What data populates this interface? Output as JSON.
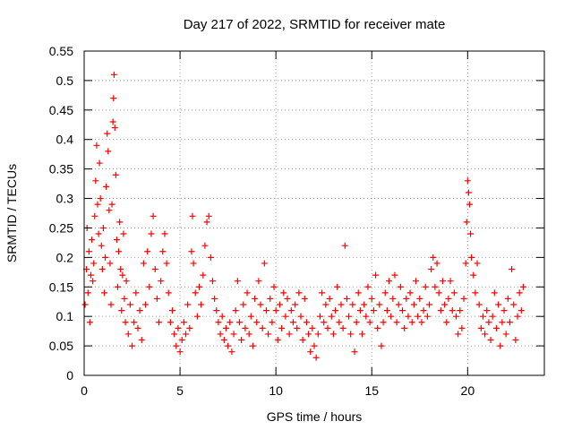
{
  "chart_data": {
    "type": "scatter",
    "title": "Day 217 of 2022, SRMTID for receiver mate",
    "xlabel": "GPS time / hours",
    "ylabel": "SRMTID / TECUs",
    "xlim": [
      0,
      24
    ],
    "ylim": [
      0,
      0.55
    ],
    "xticks": [
      0,
      5,
      10,
      15,
      20
    ],
    "yticks": [
      0,
      0.05,
      0.1,
      0.15,
      0.2,
      0.25,
      0.3,
      0.35,
      0.4,
      0.45,
      0.5,
      0.55
    ],
    "ytick_labels": [
      "0",
      "0.05",
      "0.1",
      "0.15",
      "0.2",
      "0.25",
      "0.3",
      "0.35",
      "0.4",
      "0.45",
      "0.5",
      "0.55"
    ],
    "grid": true,
    "marker": "+",
    "color": "#ff0000",
    "points": [
      [
        0.05,
        0.12
      ],
      [
        0.12,
        0.18
      ],
      [
        0.15,
        0.25
      ],
      [
        0.2,
        0.14
      ],
      [
        0.25,
        0.21
      ],
      [
        0.3,
        0.09
      ],
      [
        0.35,
        0.17
      ],
      [
        0.4,
        0.23
      ],
      [
        0.45,
        0.16
      ],
      [
        0.5,
        0.19
      ],
      [
        0.55,
        0.27
      ],
      [
        0.6,
        0.33
      ],
      [
        0.65,
        0.39
      ],
      [
        0.7,
        0.29
      ],
      [
        0.75,
        0.24
      ],
      [
        0.8,
        0.36
      ],
      [
        0.85,
        0.3
      ],
      [
        0.9,
        0.22
      ],
      [
        0.95,
        0.18
      ],
      [
        1.0,
        0.25
      ],
      [
        1.05,
        0.14
      ],
      [
        1.1,
        0.2
      ],
      [
        1.15,
        0.32
      ],
      [
        1.2,
        0.41
      ],
      [
        1.25,
        0.38
      ],
      [
        1.3,
        0.28
      ],
      [
        1.35,
        0.19
      ],
      [
        1.4,
        0.12
      ],
      [
        1.45,
        0.29
      ],
      [
        1.5,
        0.43
      ],
      [
        1.53,
        0.47
      ],
      [
        1.56,
        0.51
      ],
      [
        1.6,
        0.42
      ],
      [
        1.65,
        0.34
      ],
      [
        1.7,
        0.23
      ],
      [
        1.75,
        0.15
      ],
      [
        1.8,
        0.21
      ],
      [
        1.85,
        0.26
      ],
      [
        1.9,
        0.18
      ],
      [
        1.95,
        0.11
      ],
      [
        2.0,
        0.17
      ],
      [
        2.05,
        0.24
      ],
      [
        2.1,
        0.13
      ],
      [
        2.15,
        0.09
      ],
      [
        2.2,
        0.16
      ],
      [
        2.3,
        0.07
      ],
      [
        2.4,
        0.12
      ],
      [
        2.5,
        0.05
      ],
      [
        2.6,
        0.09
      ],
      [
        2.7,
        0.14
      ],
      [
        2.8,
        0.08
      ],
      [
        2.9,
        0.11
      ],
      [
        3.0,
        0.06
      ],
      [
        3.1,
        0.19
      ],
      [
        3.2,
        0.12
      ],
      [
        3.3,
        0.21
      ],
      [
        3.4,
        0.15
      ],
      [
        3.5,
        0.24
      ],
      [
        3.6,
        0.27
      ],
      [
        3.7,
        0.18
      ],
      [
        3.8,
        0.13
      ],
      [
        3.9,
        0.09
      ],
      [
        4.0,
        0.16
      ],
      [
        4.1,
        0.21
      ],
      [
        4.2,
        0.24
      ],
      [
        4.3,
        0.19
      ],
      [
        4.4,
        0.14
      ],
      [
        4.5,
        0.09
      ],
      [
        4.6,
        0.11
      ],
      [
        4.7,
        0.07
      ],
      [
        4.8,
        0.05
      ],
      [
        4.9,
        0.08
      ],
      [
        5.0,
        0.04
      ],
      [
        5.1,
        0.06
      ],
      [
        5.2,
        0.09
      ],
      [
        5.3,
        0.07
      ],
      [
        5.4,
        0.12
      ],
      [
        5.5,
        0.08
      ],
      [
        5.6,
        0.21
      ],
      [
        5.65,
        0.27
      ],
      [
        5.7,
        0.19
      ],
      [
        5.8,
        0.14
      ],
      [
        5.9,
        0.1
      ],
      [
        6.0,
        0.15
      ],
      [
        6.1,
        0.12
      ],
      [
        6.2,
        0.17
      ],
      [
        6.3,
        0.22
      ],
      [
        6.4,
        0.26
      ],
      [
        6.5,
        0.27
      ],
      [
        6.6,
        0.2
      ],
      [
        6.7,
        0.16
      ],
      [
        6.8,
        0.13
      ],
      [
        6.9,
        0.11
      ],
      [
        7.0,
        0.09
      ],
      [
        7.1,
        0.07
      ],
      [
        7.2,
        0.1
      ],
      [
        7.3,
        0.06
      ],
      [
        7.4,
        0.08
      ],
      [
        7.5,
        0.05
      ],
      [
        7.6,
        0.09
      ],
      [
        7.7,
        0.04
      ],
      [
        7.8,
        0.07
      ],
      [
        7.9,
        0.11
      ],
      [
        8.0,
        0.16
      ],
      [
        8.1,
        0.09
      ],
      [
        8.2,
        0.06
      ],
      [
        8.3,
        0.12
      ],
      [
        8.4,
        0.08
      ],
      [
        8.5,
        0.14
      ],
      [
        8.6,
        0.07
      ],
      [
        8.7,
        0.1
      ],
      [
        8.8,
        0.05
      ],
      [
        8.9,
        0.13
      ],
      [
        9.0,
        0.09
      ],
      [
        9.1,
        0.16
      ],
      [
        9.2,
        0.12
      ],
      [
        9.3,
        0.08
      ],
      [
        9.4,
        0.19
      ],
      [
        9.5,
        0.11
      ],
      [
        9.6,
        0.07
      ],
      [
        9.7,
        0.13
      ],
      [
        9.8,
        0.09
      ],
      [
        9.9,
        0.15
      ],
      [
        10.0,
        0.11
      ],
      [
        10.1,
        0.06
      ],
      [
        10.2,
        0.12
      ],
      [
        10.3,
        0.08
      ],
      [
        10.4,
        0.14
      ],
      [
        10.5,
        0.1
      ],
      [
        10.6,
        0.13
      ],
      [
        10.7,
        0.07
      ],
      [
        10.8,
        0.11
      ],
      [
        10.9,
        0.09
      ],
      [
        11.0,
        0.12
      ],
      [
        11.1,
        0.08
      ],
      [
        11.2,
        0.14
      ],
      [
        11.3,
        0.1
      ],
      [
        11.4,
        0.06
      ],
      [
        11.5,
        0.13
      ],
      [
        11.6,
        0.09
      ],
      [
        11.7,
        0.07
      ],
      [
        11.8,
        0.04
      ],
      [
        11.9,
        0.08
      ],
      [
        12.0,
        0.05
      ],
      [
        12.1,
        0.03
      ],
      [
        12.2,
        0.07
      ],
      [
        12.3,
        0.1
      ],
      [
        12.4,
        0.14
      ],
      [
        12.5,
        0.09
      ],
      [
        12.6,
        0.12
      ],
      [
        12.7,
        0.08
      ],
      [
        12.8,
        0.13
      ],
      [
        12.9,
        0.1
      ],
      [
        13.0,
        0.07
      ],
      [
        13.1,
        0.11
      ],
      [
        13.2,
        0.15
      ],
      [
        13.3,
        0.09
      ],
      [
        13.4,
        0.12
      ],
      [
        13.5,
        0.08
      ],
      [
        13.6,
        0.22
      ],
      [
        13.7,
        0.13
      ],
      [
        13.8,
        0.1
      ],
      [
        13.9,
        0.07
      ],
      [
        14.0,
        0.12
      ],
      [
        14.1,
        0.04
      ],
      [
        14.2,
        0.09
      ],
      [
        14.3,
        0.14
      ],
      [
        14.4,
        0.11
      ],
      [
        14.5,
        0.07
      ],
      [
        14.6,
        0.12
      ],
      [
        14.7,
        0.1
      ],
      [
        14.8,
        0.15
      ],
      [
        14.9,
        0.09
      ],
      [
        15.0,
        0.13
      ],
      [
        15.1,
        0.11
      ],
      [
        15.2,
        0.17
      ],
      [
        15.3,
        0.08
      ],
      [
        15.4,
        0.12
      ],
      [
        15.5,
        0.05
      ],
      [
        15.6,
        0.09
      ],
      [
        15.7,
        0.14
      ],
      [
        15.8,
        0.11
      ],
      [
        15.9,
        0.16
      ],
      [
        16.0,
        0.1
      ],
      [
        16.1,
        0.13
      ],
      [
        16.2,
        0.17
      ],
      [
        16.3,
        0.09
      ],
      [
        16.4,
        0.12
      ],
      [
        16.5,
        0.15
      ],
      [
        16.6,
        0.11
      ],
      [
        16.7,
        0.08
      ],
      [
        16.8,
        0.13
      ],
      [
        16.9,
        0.1
      ],
      [
        17.0,
        0.14
      ],
      [
        17.1,
        0.09
      ],
      [
        17.2,
        0.12
      ],
      [
        17.3,
        0.16
      ],
      [
        17.4,
        0.1
      ],
      [
        17.5,
        0.13
      ],
      [
        17.6,
        0.09
      ],
      [
        17.7,
        0.11
      ],
      [
        17.8,
        0.15
      ],
      [
        17.9,
        0.1
      ],
      [
        18.0,
        0.12
      ],
      [
        18.1,
        0.18
      ],
      [
        18.2,
        0.2
      ],
      [
        18.3,
        0.15
      ],
      [
        18.4,
        0.19
      ],
      [
        18.5,
        0.14
      ],
      [
        18.6,
        0.11
      ],
      [
        18.7,
        0.16
      ],
      [
        18.8,
        0.12
      ],
      [
        18.9,
        0.09
      ],
      [
        19.0,
        0.13
      ],
      [
        19.1,
        0.16
      ],
      [
        19.2,
        0.11
      ],
      [
        19.3,
        0.14
      ],
      [
        19.4,
        0.1
      ],
      [
        19.5,
        0.07
      ],
      [
        19.6,
        0.11
      ],
      [
        19.7,
        0.08
      ],
      [
        19.8,
        0.13
      ],
      [
        19.9,
        0.19
      ],
      [
        19.95,
        0.26
      ],
      [
        20.0,
        0.33
      ],
      [
        20.05,
        0.31
      ],
      [
        20.1,
        0.29
      ],
      [
        20.15,
        0.24
      ],
      [
        20.2,
        0.2
      ],
      [
        20.3,
        0.17
      ],
      [
        20.4,
        0.14
      ],
      [
        20.5,
        0.19
      ],
      [
        20.6,
        0.12
      ],
      [
        20.7,
        0.08
      ],
      [
        20.8,
        0.1
      ],
      [
        20.9,
        0.07
      ],
      [
        21.0,
        0.11
      ],
      [
        21.1,
        0.09
      ],
      [
        21.2,
        0.06
      ],
      [
        21.3,
        0.1
      ],
      [
        21.4,
        0.14
      ],
      [
        21.5,
        0.08
      ],
      [
        21.6,
        0.12
      ],
      [
        21.7,
        0.05
      ],
      [
        21.8,
        0.09
      ],
      [
        21.9,
        0.11
      ],
      [
        22.0,
        0.07
      ],
      [
        22.1,
        0.13
      ],
      [
        22.2,
        0.09
      ],
      [
        22.3,
        0.18
      ],
      [
        22.4,
        0.12
      ],
      [
        22.5,
        0.06
      ],
      [
        22.6,
        0.1
      ],
      [
        22.7,
        0.14
      ],
      [
        22.8,
        0.11
      ],
      [
        22.9,
        0.15
      ]
    ]
  }
}
